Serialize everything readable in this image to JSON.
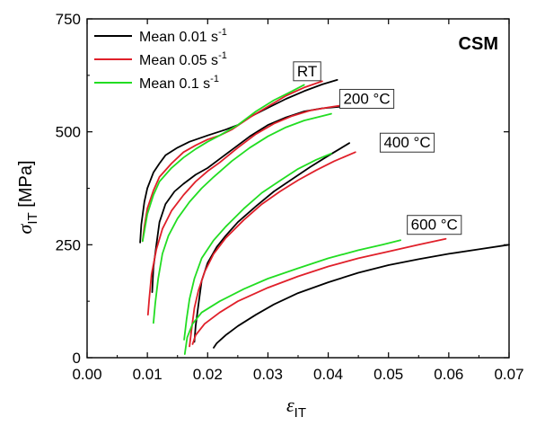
{
  "chart_data": {
    "type": "line",
    "title": "",
    "corner_label": "CSM",
    "xlabel": {
      "main": "ε",
      "sub": "IT"
    },
    "ylabel": {
      "main": "σ",
      "sub": "IT",
      "unit": " [MPa]"
    },
    "xlim": [
      0,
      0.07
    ],
    "ylim": [
      0,
      750
    ],
    "x_ticks": [
      0.0,
      0.01,
      0.02,
      0.03,
      0.04,
      0.05,
      0.06,
      0.07
    ],
    "x_tick_labels": [
      "0.00",
      "0.01",
      "0.02",
      "0.03",
      "0.04",
      "0.05",
      "0.06",
      "0.07"
    ],
    "y_ticks": [
      0,
      250,
      500,
      750
    ],
    "y_tick_labels": [
      "0",
      "250",
      "500",
      "750"
    ],
    "grid": false,
    "legend": {
      "placement": "top-left",
      "entries": [
        {
          "text": "Mean 0.01 s",
          "sup": "-1",
          "color": "#000000"
        },
        {
          "text": "Mean 0.05 s",
          "sup": "-1",
          "color": "#e0202a"
        },
        {
          "text": "Mean 0.1 s",
          "sup": "-1",
          "color": "#22dd22"
        }
      ]
    },
    "groups": [
      {
        "label": "RT",
        "label_at": [
          0.0365,
          635
        ]
      },
      {
        "label": "200 °C",
        "label_at": [
          0.0464,
          574
        ]
      },
      {
        "label": "400 °C",
        "label_at": [
          0.0531,
          477
        ]
      },
      {
        "label": "600 °C",
        "label_at": [
          0.0576,
          295
        ]
      }
    ],
    "series": [
      {
        "name": "Mean 0.01 s-1",
        "group": "RT",
        "color": "#000000",
        "points": [
          [
            0.0088,
            255
          ],
          [
            0.009,
            295
          ],
          [
            0.0095,
            345
          ],
          [
            0.01,
            375
          ],
          [
            0.011,
            410
          ],
          [
            0.012,
            430
          ],
          [
            0.013,
            448
          ],
          [
            0.015,
            465
          ],
          [
            0.017,
            478
          ],
          [
            0.02,
            492
          ],
          [
            0.023,
            505
          ],
          [
            0.025,
            515
          ],
          [
            0.027,
            533
          ],
          [
            0.03,
            553
          ],
          [
            0.033,
            573
          ],
          [
            0.036,
            590
          ],
          [
            0.039,
            605
          ],
          [
            0.0415,
            615
          ]
        ]
      },
      {
        "name": "Mean 0.05 s-1",
        "group": "RT",
        "color": "#e0202a",
        "points": [
          [
            0.0092,
            258
          ],
          [
            0.0095,
            290
          ],
          [
            0.01,
            330
          ],
          [
            0.011,
            370
          ],
          [
            0.012,
            400
          ],
          [
            0.014,
            430
          ],
          [
            0.016,
            455
          ],
          [
            0.018,
            470
          ],
          [
            0.02,
            483
          ],
          [
            0.022,
            492
          ],
          [
            0.024,
            505
          ],
          [
            0.027,
            532
          ],
          [
            0.03,
            556
          ],
          [
            0.033,
            580
          ],
          [
            0.036,
            598
          ],
          [
            0.039,
            612
          ]
        ]
      },
      {
        "name": "Mean 0.1 s-1",
        "group": "RT",
        "color": "#22dd22",
        "points": [
          [
            0.0092,
            258
          ],
          [
            0.0095,
            280
          ],
          [
            0.01,
            318
          ],
          [
            0.011,
            360
          ],
          [
            0.012,
            390
          ],
          [
            0.014,
            420
          ],
          [
            0.016,
            443
          ],
          [
            0.018,
            462
          ],
          [
            0.02,
            478
          ],
          [
            0.022,
            492
          ],
          [
            0.025,
            515
          ],
          [
            0.028,
            545
          ],
          [
            0.031,
            570
          ],
          [
            0.034,
            590
          ],
          [
            0.036,
            604
          ]
        ]
      },
      {
        "name": "Mean 0.01 s-1",
        "group": "200 °C",
        "color": "#000000",
        "points": [
          [
            0.0108,
            145
          ],
          [
            0.011,
            200
          ],
          [
            0.0115,
            250
          ],
          [
            0.012,
            300
          ],
          [
            0.013,
            340
          ],
          [
            0.0145,
            368
          ],
          [
            0.016,
            385
          ],
          [
            0.018,
            405
          ],
          [
            0.02,
            420
          ],
          [
            0.022,
            440
          ],
          [
            0.024,
            460
          ],
          [
            0.027,
            490
          ],
          [
            0.03,
            515
          ],
          [
            0.033,
            532
          ],
          [
            0.036,
            545
          ],
          [
            0.039,
            552
          ],
          [
            0.0425,
            556
          ]
        ]
      },
      {
        "name": "Mean 0.05 s-1",
        "group": "200 °C",
        "color": "#e0202a",
        "points": [
          [
            0.0101,
            95
          ],
          [
            0.0103,
            130
          ],
          [
            0.0107,
            185
          ],
          [
            0.0115,
            240
          ],
          [
            0.0125,
            285
          ],
          [
            0.014,
            325
          ],
          [
            0.016,
            360
          ],
          [
            0.018,
            390
          ],
          [
            0.02,
            413
          ],
          [
            0.022,
            432
          ],
          [
            0.025,
            465
          ],
          [
            0.028,
            495
          ],
          [
            0.031,
            518
          ],
          [
            0.034,
            535
          ],
          [
            0.037,
            547
          ],
          [
            0.04,
            554
          ],
          [
            0.043,
            560
          ]
        ]
      },
      {
        "name": "Mean 0.1 s-1",
        "group": "200 °C",
        "color": "#22dd22",
        "points": [
          [
            0.011,
            77
          ],
          [
            0.0113,
            120
          ],
          [
            0.0118,
            175
          ],
          [
            0.0125,
            230
          ],
          [
            0.0135,
            270
          ],
          [
            0.015,
            308
          ],
          [
            0.017,
            345
          ],
          [
            0.019,
            375
          ],
          [
            0.021,
            400
          ],
          [
            0.024,
            435
          ],
          [
            0.027,
            465
          ],
          [
            0.03,
            490
          ],
          [
            0.033,
            510
          ],
          [
            0.036,
            525
          ],
          [
            0.039,
            535
          ],
          [
            0.0405,
            540
          ]
        ]
      },
      {
        "name": "Mean 0.01 s-1",
        "group": "400 °C",
        "color": "#000000",
        "points": [
          [
            0.0178,
            35
          ],
          [
            0.018,
            70
          ],
          [
            0.0185,
            120
          ],
          [
            0.019,
            170
          ],
          [
            0.02,
            210
          ],
          [
            0.0215,
            245
          ],
          [
            0.023,
            270
          ],
          [
            0.025,
            300
          ],
          [
            0.028,
            335
          ],
          [
            0.031,
            368
          ],
          [
            0.034,
            395
          ],
          [
            0.037,
            422
          ],
          [
            0.04,
            447
          ],
          [
            0.042,
            463
          ],
          [
            0.0435,
            475
          ]
        ]
      },
      {
        "name": "Mean 0.05 s-1",
        "group": "400 °C",
        "color": "#e0202a",
        "points": [
          [
            0.017,
            25
          ],
          [
            0.0173,
            60
          ],
          [
            0.0178,
            110
          ],
          [
            0.0185,
            150
          ],
          [
            0.0195,
            190
          ],
          [
            0.021,
            230
          ],
          [
            0.023,
            265
          ],
          [
            0.026,
            305
          ],
          [
            0.029,
            340
          ],
          [
            0.032,
            368
          ],
          [
            0.035,
            393
          ],
          [
            0.038,
            415
          ],
          [
            0.041,
            435
          ],
          [
            0.0445,
            455
          ]
        ]
      },
      {
        "name": "Mean 0.1 s-1",
        "group": "400 °C",
        "color": "#22dd22",
        "points": [
          [
            0.0161,
            40
          ],
          [
            0.0165,
            85
          ],
          [
            0.017,
            130
          ],
          [
            0.0178,
            175
          ],
          [
            0.019,
            220
          ],
          [
            0.021,
            260
          ],
          [
            0.023,
            290
          ],
          [
            0.026,
            330
          ],
          [
            0.029,
            365
          ],
          [
            0.032,
            392
          ],
          [
            0.035,
            418
          ],
          [
            0.038,
            438
          ],
          [
            0.0405,
            452
          ]
        ]
      },
      {
        "name": "Mean 0.01 s-1",
        "group": "600 °C",
        "color": "#000000",
        "points": [
          [
            0.021,
            22
          ],
          [
            0.0215,
            32
          ],
          [
            0.023,
            50
          ],
          [
            0.025,
            70
          ],
          [
            0.028,
            95
          ],
          [
            0.031,
            118
          ],
          [
            0.035,
            143
          ],
          [
            0.04,
            167
          ],
          [
            0.045,
            188
          ],
          [
            0.05,
            205
          ],
          [
            0.055,
            218
          ],
          [
            0.06,
            230
          ],
          [
            0.065,
            240
          ],
          [
            0.07,
            250
          ]
        ]
      },
      {
        "name": "Mean 0.05 s-1",
        "group": "600 °C",
        "color": "#e0202a",
        "points": [
          [
            0.0175,
            30
          ],
          [
            0.018,
            50
          ],
          [
            0.0195,
            75
          ],
          [
            0.022,
            100
          ],
          [
            0.025,
            125
          ],
          [
            0.03,
            155
          ],
          [
            0.035,
            180
          ],
          [
            0.04,
            202
          ],
          [
            0.045,
            220
          ],
          [
            0.05,
            235
          ],
          [
            0.055,
            250
          ],
          [
            0.0595,
            263
          ]
        ]
      },
      {
        "name": "Mean 0.1 s-1",
        "group": "600 °C",
        "color": "#22dd22",
        "points": [
          [
            0.0162,
            8
          ],
          [
            0.0166,
            45
          ],
          [
            0.0175,
            75
          ],
          [
            0.019,
            100
          ],
          [
            0.022,
            125
          ],
          [
            0.026,
            152
          ],
          [
            0.03,
            175
          ],
          [
            0.035,
            198
          ],
          [
            0.04,
            220
          ],
          [
            0.045,
            238
          ],
          [
            0.049,
            250
          ],
          [
            0.052,
            260
          ]
        ]
      }
    ]
  }
}
